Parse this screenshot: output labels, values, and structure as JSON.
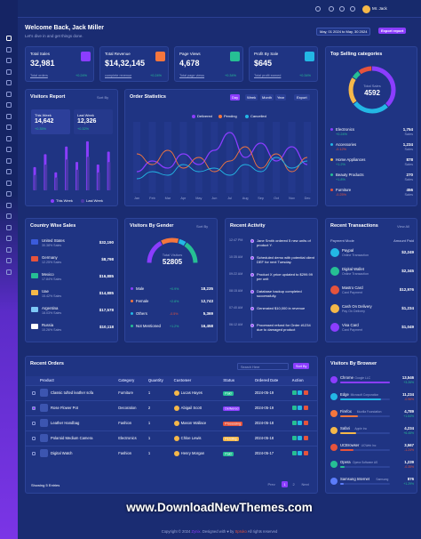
{
  "header": {
    "user": "Mr. Jack"
  },
  "welcome": {
    "title": "Welcome Back, Jack Miller",
    "subtitle": "Let's dive in and get things done.",
    "date_range": "May, 01 2024 to May, 30 2024",
    "export": "Export report"
  },
  "stats": [
    {
      "label": "Total Sales",
      "value": "32,981",
      "note": "Total orders",
      "change": "+0.24%",
      "color": "#8b3dff"
    },
    {
      "label": "Total Revenue",
      "value": "$14,32,145",
      "note": "complete revenue",
      "change": "+0.24%",
      "color": "#f5763d"
    },
    {
      "label": "Page Views",
      "value": "4,678",
      "note": "Total page views",
      "change": "+0.34%",
      "color": "#26bf94"
    },
    {
      "label": "Profit By Sale",
      "value": "$645",
      "note": "Total profit earned",
      "change": "+0.34%",
      "color": "#23b7e5"
    }
  ],
  "visitors_report": {
    "title": "Visitors Report",
    "sort": "Sort By",
    "ylim": [
      0,
      100
    ],
    "series": [
      {
        "name": "This Week",
        "total": "14,642",
        "change": "+0.35%",
        "color": "#8b3dff",
        "values": [
          45,
          70,
          35,
          85,
          55,
          95,
          50,
          75
        ]
      },
      {
        "name": "Last Week",
        "total": "12,326",
        "change": "+0.32%",
        "color": "#4a3aa8",
        "values": [
          30,
          50,
          25,
          60,
          40,
          65,
          35,
          55
        ]
      }
    ]
  },
  "order_statistics": {
    "title": "Order Statistics",
    "tabs": [
      "Day",
      "Week",
      "Month",
      "Year"
    ],
    "export": "Export",
    "ylim": [
      0,
      100
    ],
    "categories": [
      "Jan",
      "Feb",
      "Mar",
      "Apr",
      "May",
      "Jun",
      "Jul",
      "Aug",
      "Sep",
      "Oct",
      "Nov",
      "Dec"
    ],
    "series": [
      {
        "name": "Delivered",
        "color": "#8b3dff",
        "values": [
          30,
          45,
          35,
          55,
          40,
          60,
          85,
          50,
          70,
          45,
          65,
          40
        ]
      },
      {
        "name": "Pending",
        "color": "#f5763d",
        "values": [
          55,
          40,
          60,
          35,
          50,
          30,
          45,
          65,
          35,
          55,
          30,
          50
        ]
      },
      {
        "name": "Cancelled",
        "color": "#23b7e5",
        "values": [
          20,
          30,
          25,
          40,
          30,
          35,
          25,
          40,
          30,
          50,
          35,
          45
        ]
      }
    ]
  },
  "top_selling": {
    "title": "Top Selling categories",
    "center_label": "Total Sales",
    "center_value": "4592",
    "unit": "Sales",
    "items": [
      {
        "name": "Electronics",
        "change": "+0.24%",
        "sales": 1754,
        "sales_label": "1,754",
        "color": "#8b3dff"
      },
      {
        "name": "Accessories",
        "change": "-0.12%",
        "sales": 1234,
        "sales_label": "1,234",
        "color": "#23b7e5"
      },
      {
        "name": "Home Appliances",
        "change": "+1.2%",
        "sales": 878,
        "sales_label": "878",
        "color": "#f5b849"
      },
      {
        "name": "Beauty Products",
        "change": "+1.8%",
        "sales": 270,
        "sales_label": "270",
        "color": "#26bf94"
      },
      {
        "name": "Furniture",
        "change": "-0.25%",
        "sales": 456,
        "sales_label": "456",
        "color": "#e6533c"
      }
    ]
  },
  "country_sales": {
    "title": "Country Wise Sales",
    "items": [
      {
        "country": "United States",
        "sub": "30.38% Sales",
        "value": "$32,190",
        "flag": "#3b5bdb"
      },
      {
        "country": "Germany",
        "sub": "12.25% Sales",
        "value": "$8,798",
        "flag": "#e6533c"
      },
      {
        "country": "Mexico",
        "sub": "17.84% Sales",
        "value": "$16,885",
        "flag": "#26bf94"
      },
      {
        "country": "Uae",
        "sub": "15.42% Sales",
        "value": "$14,885",
        "flag": "#f5b849"
      },
      {
        "country": "Argentina",
        "sub": "18.03% Sales",
        "value": "$17,578",
        "flag": "#7ec8f5"
      },
      {
        "country": "Russia",
        "sub": "10.26% Sales",
        "value": "$10,118",
        "flag": "#ffffff"
      }
    ]
  },
  "gender": {
    "title": "Visitors By Gender",
    "sort": "Sort By",
    "center_label": "Total Visitors",
    "center_value": "52805",
    "items": [
      {
        "name": "Male",
        "change": "+0.9%",
        "value": 18235,
        "label": "18,235",
        "color": "#8b3dff"
      },
      {
        "name": "Female",
        "change": "+2.8%",
        "value": 12743,
        "label": "12,743",
        "color": "#f5763d"
      },
      {
        "name": "Others",
        "change": "-0.5%",
        "value": 5369,
        "label": "5,369",
        "color": "#23b7e5"
      },
      {
        "name": "Not Mentioned",
        "change": "+1.2%",
        "value": 16458,
        "label": "16,458",
        "color": "#26bf94"
      }
    ]
  },
  "activity": {
    "title": "Recent Activity",
    "items": [
      {
        "time": "12:47 PM",
        "text": "Jane Smith ordered 5 new units of product Y."
      },
      {
        "time": "10:35 AM",
        "text": "Scheduled demo with potential client DEF for next Tuesday."
      },
      {
        "time": "09:22 AM",
        "text": "Product X price updated to $299.99 per unit"
      },
      {
        "time": "08:15 AM",
        "text": "Database backup completed successfully."
      },
      {
        "time": "07:40 AM",
        "text": "Generated $10,000 in revenue"
      },
      {
        "time": "06:12 AM",
        "text": "Processed refund for Order #1234 due to damaged product"
      }
    ]
  },
  "transactions": {
    "title": "Recent Transactions",
    "view": "View All",
    "col_mode": "Payment Mode",
    "col_amount": "Amount Paid",
    "items": [
      {
        "name": "Paypal",
        "sub": "Online Transaction",
        "amount": "$2,249",
        "color": "#23b7e5"
      },
      {
        "name": "Digital Wallet",
        "sub": "Online Transaction",
        "amount": "$2,345",
        "color": "#26bf94"
      },
      {
        "name": "Mastro Card",
        "sub": "Card Payment",
        "amount": "$12,976",
        "color": "#e6533c"
      },
      {
        "name": "Cash On Delivery",
        "sub": "Pay On Delivery",
        "amount": "$1,234",
        "color": "#f5b849"
      },
      {
        "name": "Visa Card",
        "sub": "Card Payment",
        "amount": "$1,049",
        "color": "#8b3dff"
      }
    ]
  },
  "orders": {
    "title": "Recent Orders",
    "search": "Search Here",
    "sort": "Sort By",
    "columns": [
      "Product",
      "Category",
      "Quantity",
      "Customer",
      "Status",
      "Ordered Date",
      "Action"
    ],
    "rows": [
      [
        "Classic tufted leather sofa",
        "Furniture",
        "1",
        "Lucas Hayes",
        "Paid",
        "2024-05-19"
      ],
      [
        "Rose Flower Pot",
        "Decoration",
        "2",
        "Abigail Scott",
        "Delivered",
        "2024-05-19"
      ],
      [
        "Leather Handbag",
        "Fashion",
        "1",
        "Mason Wallace",
        "Processing",
        "2024-05-18"
      ],
      [
        "Polaroid Medium Camera",
        "Electronics",
        "1",
        "Chloe Lewis",
        "Pending",
        "2024-05-18"
      ],
      [
        "Digital Watch",
        "Fashion",
        "1",
        "Henry Morgan",
        "Paid",
        "2024-05-17"
      ]
    ],
    "status_colors": [
      "#26bf94",
      "#8b3dff",
      "#e6533c",
      "#f5b849",
      "#26bf94"
    ],
    "showing": "Showing 5 Entries",
    "pages": [
      "Prev",
      "1",
      "2",
      "Next"
    ]
  },
  "browsers": {
    "title": "Visitors By Browser",
    "items": [
      {
        "name": "Chrome",
        "company": "Google LLC",
        "count": 13546,
        "label": "13,546",
        "change": "+3.26%",
        "color": "#8b3dff"
      },
      {
        "name": "Edge",
        "company": "Microsoft Corporation",
        "count": 11234,
        "label": "11,234",
        "change": "-0.96%",
        "color": "#23b7e5"
      },
      {
        "name": "Firefox",
        "company": "Mozilla Foundation",
        "count": 4789,
        "label": "4,789",
        "change": "+1.64%",
        "color": "#f5763d"
      },
      {
        "name": "Safari",
        "company": "Apple Inc",
        "count": 4234,
        "label": "4,234",
        "change": "+6.45%",
        "color": "#f5b849"
      },
      {
        "name": "UCBrowser",
        "company": "UCWeb Inc",
        "count": 3567,
        "label": "3,567",
        "change": "-1.24%",
        "color": "#e6533c"
      },
      {
        "name": "Opera",
        "company": "Opera Software AS",
        "count": 1239,
        "label": "1,239",
        "change": "-0.35%",
        "color": "#26bf94"
      },
      {
        "name": "Samsung Internet",
        "company": "Samsung",
        "count": 876,
        "label": "876",
        "change": "+1.29%",
        "color": "#5b7cfa"
      }
    ]
  },
  "watermark": "www.DownloadNewThemes.com",
  "footer": {
    "prefix": "Copyright © 2024",
    "brand": "Zynix",
    "middle": ". Designed with ♥ by",
    "author": "Spruko",
    "suffix": "All rights reserved"
  }
}
